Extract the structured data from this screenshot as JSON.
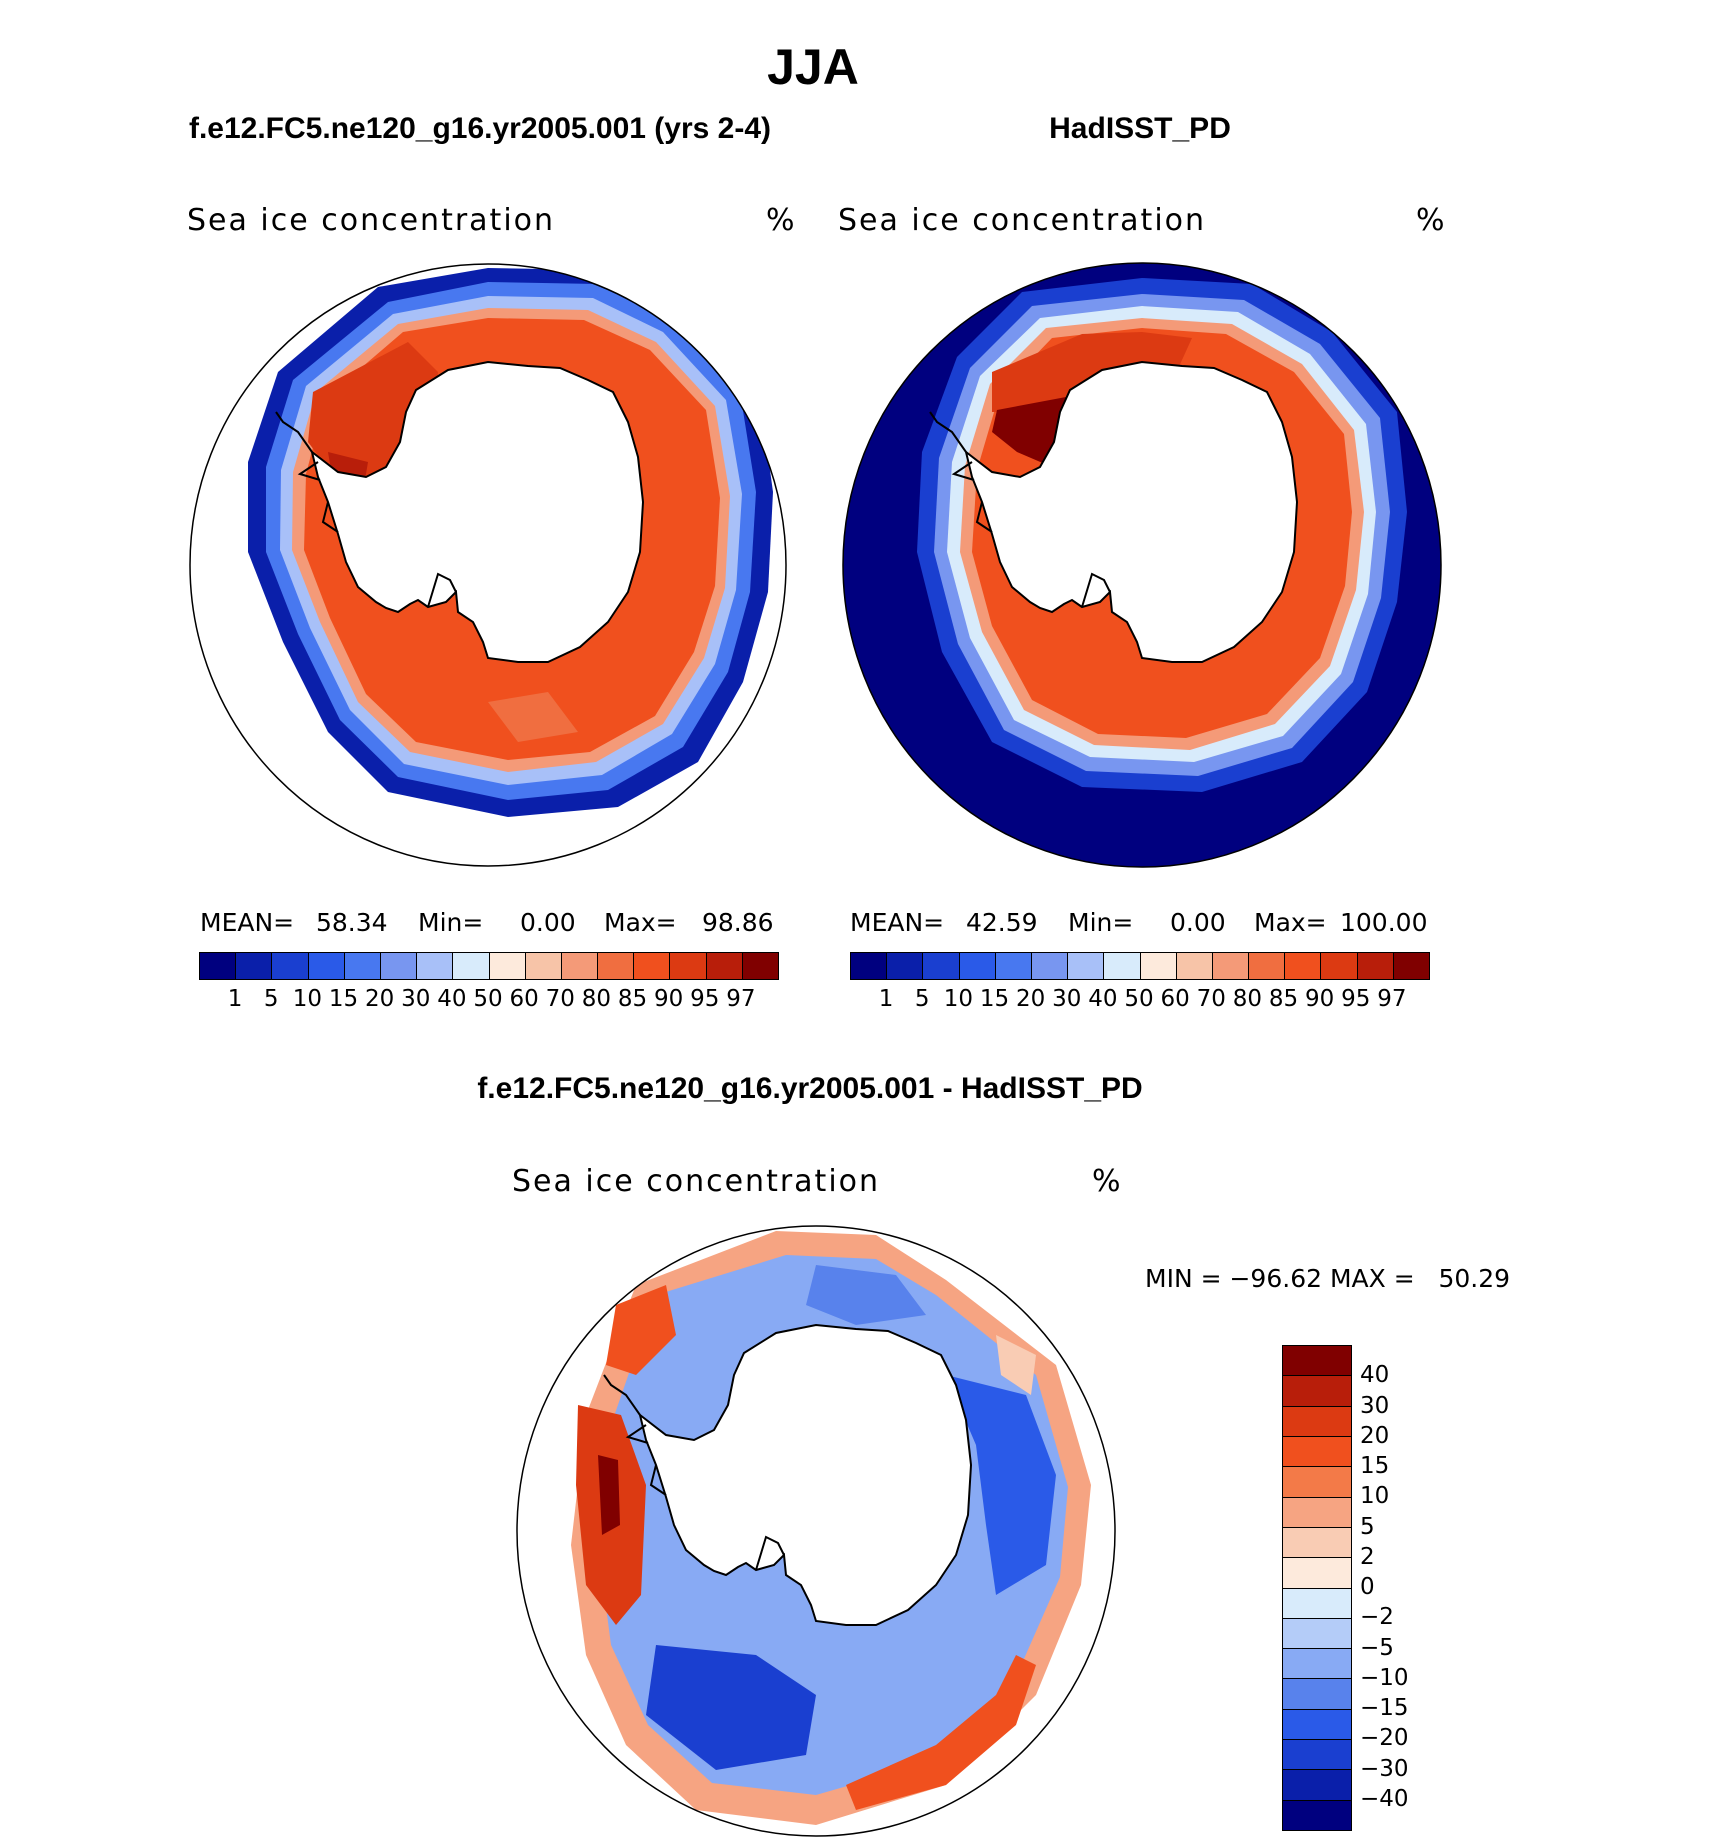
{
  "main_title": "JJA",
  "panels": [
    {
      "title": "f.e12.FC5.ne120_g16.yr2005.001 (yrs 2-4)",
      "variable": "Sea ice concentration",
      "units": "%",
      "stats": {
        "mean_label": "MEAN=",
        "mean": "58.34",
        "min_label": "Min=",
        "min": "0.00",
        "max_label": "Max=",
        "max": "98.86"
      },
      "colorbar_ticks": [
        "1",
        "5",
        "10",
        "15",
        "20",
        "30",
        "40",
        "50",
        "60",
        "70",
        "80",
        "85",
        "90",
        "95",
        "97"
      ]
    },
    {
      "title": "HadISST_PD",
      "variable": "Sea ice concentration",
      "units": "%",
      "stats": {
        "mean_label": "MEAN=",
        "mean": "42.59",
        "min_label": "Min=",
        "min": "0.00",
        "max_label": "Max=",
        "max": "100.00"
      },
      "colorbar_ticks": [
        "1",
        "5",
        "10",
        "15",
        "20",
        "30",
        "40",
        "50",
        "60",
        "70",
        "80",
        "85",
        "90",
        "95",
        "97"
      ]
    }
  ],
  "difference": {
    "title": "f.e12.FC5.ne120_g16.yr2005.001 - HadISST_PD",
    "variable": "Sea ice concentration",
    "units": "%",
    "range_text": "MIN = −96.62 MAX =   50.29",
    "colorbar_ticks": [
      "40",
      "30",
      "20",
      "15",
      "10",
      "5",
      "2",
      "0",
      "−2",
      "−5",
      "−10",
      "−15",
      "−20",
      "−30",
      "−40"
    ]
  },
  "colors": {
    "conc_scale": [
      "#00007f",
      "#0a1faa",
      "#1a3fd0",
      "#2a5ae8",
      "#4878f0",
      "#7896f0",
      "#a8c0f8",
      "#d8ebfb",
      "#fdeadc",
      "#f7c4a8",
      "#f49a78",
      "#f06e40",
      "#f0501e",
      "#dc3a12",
      "#b81e0a",
      "#800000"
    ],
    "diff_scale": [
      "#800000",
      "#b81e0a",
      "#dc3a12",
      "#f0501e",
      "#f37a48",
      "#f6a482",
      "#f9ccb4",
      "#fdeadc",
      "#d8ebfb",
      "#b4ccf8",
      "#88aaf4",
      "#5882ec",
      "#2a5ae8",
      "#1a3fd0",
      "#0a1faa",
      "#00007f"
    ]
  }
}
